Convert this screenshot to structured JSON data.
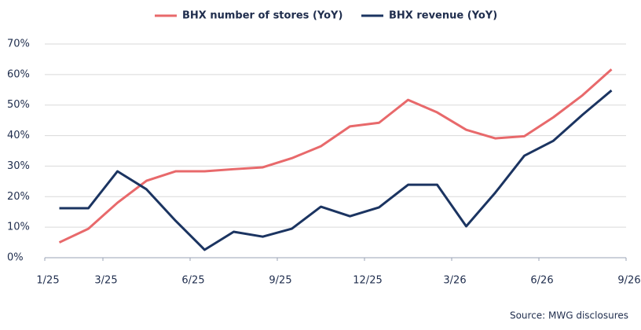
{
  "chart_data": {
    "type": "line",
    "x": [
      0.5,
      1.5,
      2.5,
      3.5,
      4.5,
      5.5,
      6.5,
      7.5,
      8.5,
      9.5,
      10.5,
      11.5,
      12.5,
      13.5,
      14.5,
      15.5,
      16.5,
      17.5,
      18.5,
      19.5
    ],
    "xlim": [
      0,
      20
    ],
    "xticks": [
      {
        "value": 0,
        "label": "1/25"
      },
      {
        "value": 2,
        "label": "3/25"
      },
      {
        "value": 5,
        "label": "6/25"
      },
      {
        "value": 8,
        "label": "9/25"
      },
      {
        "value": 11,
        "label": "12/25"
      },
      {
        "value": 14,
        "label": "3/26"
      },
      {
        "value": 17,
        "label": "6/26"
      },
      {
        "value": 20,
        "label": "9/26"
      }
    ],
    "ylim": [
      0,
      70
    ],
    "yticks": [
      {
        "value": 0,
        "label": "0%"
      },
      {
        "value": 10,
        "label": "10%"
      },
      {
        "value": 20,
        "label": "20%"
      },
      {
        "value": 30,
        "label": "30%"
      },
      {
        "value": 40,
        "label": "40%"
      },
      {
        "value": 50,
        "label": "50%"
      },
      {
        "value": 60,
        "label": "60%"
      },
      {
        "value": 70,
        "label": "70%"
      }
    ],
    "grid": true,
    "legend": "top",
    "series": [
      {
        "name": "BHX number of stores (YoY)",
        "color": "#e8696b",
        "values": [
          5,
          9.5,
          18,
          25.2,
          28.3,
          28.3,
          29,
          29.6,
          32.6,
          36.5,
          43,
          44.2,
          51.7,
          47.6,
          41.9,
          39.1,
          39.8,
          46,
          53.2,
          61.7
        ]
      },
      {
        "name": "BHX revenue (YoY)",
        "color": "#1b3461",
        "values": [
          16.2,
          16.2,
          28.3,
          22.4,
          12.1,
          2.6,
          8.5,
          6.9,
          9.5,
          16.7,
          13.6,
          16.5,
          23.9,
          23.9,
          10.3,
          21.3,
          33.4,
          38.3,
          46.8,
          54.8
        ]
      }
    ],
    "source": "Source: MWG disclosures"
  }
}
